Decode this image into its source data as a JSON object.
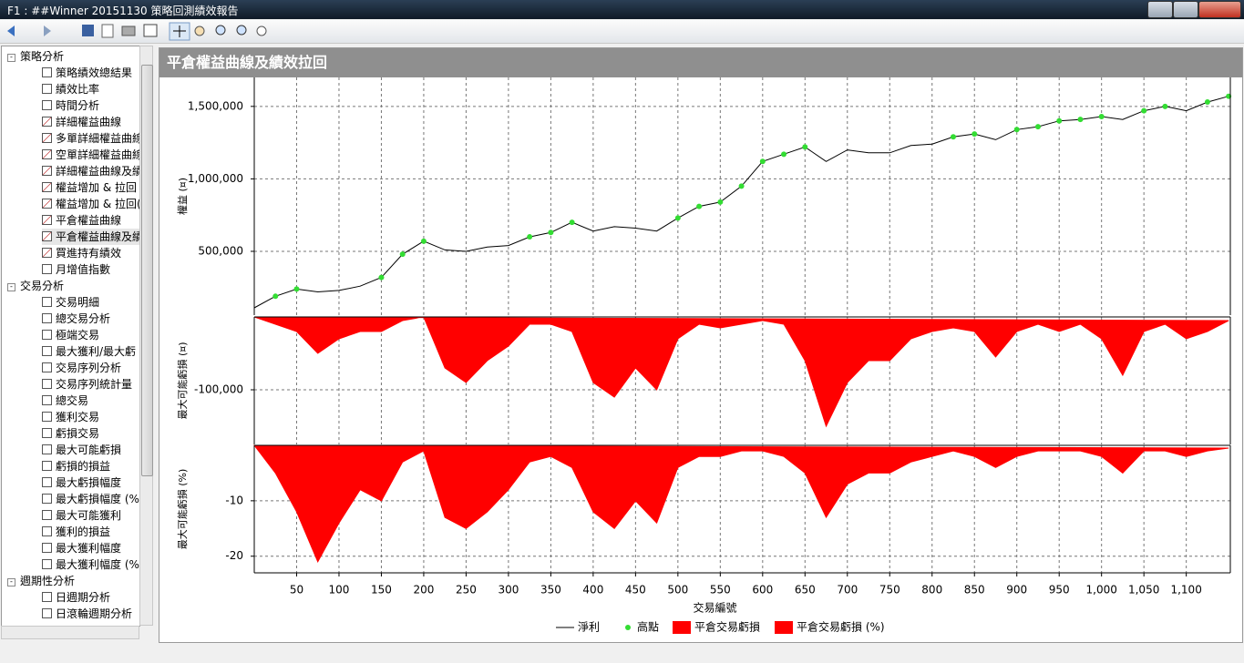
{
  "window": {
    "title": "F1 : ##Winner 20151130 策略回測績效報告"
  },
  "panel": {
    "title": "平倉權益曲線及績效拉回"
  },
  "sidebar": {
    "groups": [
      {
        "label": "策略分析",
        "items": [
          "策略績效總結果",
          "績效比率",
          "時間分析",
          "詳細權益曲線",
          "多單詳細權益曲線",
          "空單詳細權益曲線",
          "詳細權益曲線及績",
          "權益增加 & 拉回",
          "權益增加 & 拉回(",
          "平倉權益曲線",
          "平倉權益曲線及績",
          "買進持有績效",
          "月增值指數"
        ]
      },
      {
        "label": "交易分析",
        "items": [
          "交易明細",
          "總交易分析",
          "極端交易",
          "最大獲利/最大虧",
          "交易序列分析",
          "交易序列統計量",
          "總交易",
          "獲利交易",
          "虧損交易",
          "最大可能虧損",
          "虧損的損益",
          "最大虧損幅度",
          "最大虧損幅度 (%",
          "最大可能獲利",
          "獲利的損益",
          "最大獲利幅度",
          "最大獲利幅度 (%"
        ]
      },
      {
        "label": "週期性分析",
        "items": [
          "日週期分析",
          "日滾輪週期分析"
        ]
      }
    ]
  },
  "chart_data": [
    {
      "type": "line",
      "ylabel": "權益 (¤)",
      "xlim": [
        0,
        1152
      ],
      "ylim": [
        60000,
        1700000
      ],
      "yticks": [
        {
          "value": 500000,
          "label": "500,000"
        },
        {
          "value": 1000000,
          "label": "1,000,000"
        },
        {
          "value": 1500000,
          "label": "1,500,000"
        }
      ],
      "grid": true,
      "series": [
        {
          "name": "淨利",
          "type": "line",
          "color": "#000000",
          "x": [
            0,
            25,
            50,
            75,
            100,
            125,
            150,
            175,
            200,
            225,
            250,
            275,
            300,
            325,
            350,
            375,
            400,
            425,
            450,
            475,
            500,
            525,
            550,
            575,
            600,
            625,
            650,
            675,
            700,
            725,
            750,
            775,
            800,
            825,
            850,
            875,
            900,
            925,
            950,
            975,
            1000,
            1025,
            1050,
            1075,
            1100,
            1125,
            1150
          ],
          "values": [
            110000,
            190000,
            240000,
            220000,
            230000,
            260000,
            320000,
            480000,
            570000,
            510000,
            500000,
            530000,
            540000,
            600000,
            630000,
            700000,
            640000,
            670000,
            660000,
            640000,
            730000,
            810000,
            840000,
            950000,
            1120000,
            1170000,
            1220000,
            1120000,
            1200000,
            1180000,
            1180000,
            1230000,
            1240000,
            1290000,
            1310000,
            1270000,
            1340000,
            1360000,
            1400000,
            1410000,
            1430000,
            1410000,
            1470000,
            1500000,
            1470000,
            1530000,
            1570000
          ]
        },
        {
          "name": "高點",
          "type": "scatter",
          "color": "#33dd33",
          "x": [
            25,
            50,
            150,
            175,
            200,
            325,
            350,
            375,
            500,
            525,
            550,
            575,
            600,
            625,
            650,
            825,
            850,
            900,
            925,
            950,
            975,
            1000,
            1050,
            1075,
            1125,
            1150
          ],
          "values": [
            190000,
            240000,
            320000,
            480000,
            570000,
            600000,
            630000,
            700000,
            730000,
            810000,
            840000,
            950000,
            1120000,
            1170000,
            1220000,
            1290000,
            1310000,
            1340000,
            1360000,
            1400000,
            1410000,
            1430000,
            1470000,
            1500000,
            1530000,
            1570000
          ]
        }
      ]
    },
    {
      "type": "area",
      "ylabel": "最大可能虧損 (¤)",
      "xlim": [
        0,
        1152
      ],
      "ylim": [
        -175000,
        0
      ],
      "yticks": [
        {
          "value": -100000,
          "label": "-100,000"
        }
      ],
      "grid": true,
      "series": [
        {
          "name": "平倉交易虧損",
          "color": "#ff0000",
          "x": [
            0,
            25,
            50,
            75,
            100,
            125,
            150,
            175,
            200,
            225,
            250,
            275,
            300,
            325,
            350,
            375,
            400,
            425,
            450,
            475,
            500,
            525,
            550,
            575,
            600,
            625,
            650,
            675,
            700,
            725,
            750,
            775,
            800,
            825,
            850,
            875,
            900,
            925,
            950,
            975,
            1000,
            1025,
            1050,
            1075,
            1100,
            1125,
            1150
          ],
          "values": [
            0,
            -10000,
            -20000,
            -50000,
            -30000,
            -20000,
            -20000,
            -5000,
            0,
            -70000,
            -90000,
            -60000,
            -40000,
            -10000,
            -10000,
            -20000,
            -90000,
            -110000,
            -70000,
            -100000,
            -30000,
            -10000,
            -15000,
            -10000,
            -5000,
            -10000,
            -60000,
            -150000,
            -90000,
            -60000,
            -60000,
            -30000,
            -20000,
            -15000,
            -20000,
            -55000,
            -20000,
            -10000,
            -20000,
            -10000,
            -30000,
            -80000,
            -20000,
            -10000,
            -30000,
            -20000,
            -5000
          ]
        }
      ]
    },
    {
      "type": "area",
      "ylabel": "最大可能虧損 (%)",
      "xlabel": "交易編號",
      "xlim": [
        0,
        1152
      ],
      "ylim": [
        -23,
        0
      ],
      "yticks": [
        -20,
        -10
      ],
      "grid": true,
      "xticks": [
        50,
        100,
        150,
        200,
        250,
        300,
        350,
        400,
        450,
        500,
        550,
        600,
        650,
        700,
        750,
        800,
        850,
        900,
        950,
        {
          "value": 1000,
          "label": "1,000"
        },
        {
          "value": 1050,
          "label": "1,050"
        },
        {
          "value": 1100,
          "label": "1,100"
        }
      ],
      "series": [
        {
          "name": "平倉交易虧損 (%)",
          "color": "#ff0000",
          "x": [
            0,
            25,
            50,
            75,
            100,
            125,
            150,
            175,
            200,
            225,
            250,
            275,
            300,
            325,
            350,
            375,
            400,
            425,
            450,
            475,
            500,
            525,
            550,
            575,
            600,
            625,
            650,
            675,
            700,
            725,
            750,
            775,
            800,
            825,
            850,
            875,
            900,
            925,
            950,
            975,
            1000,
            1025,
            1050,
            1075,
            1100,
            1125,
            1150
          ],
          "values": [
            0,
            -5,
            -12,
            -21,
            -14,
            -8,
            -10,
            -3,
            -1,
            -13,
            -15,
            -12,
            -8,
            -3,
            -2,
            -4,
            -12,
            -15,
            -10,
            -14,
            -4,
            -2,
            -2,
            -1,
            -1,
            -2,
            -5,
            -13,
            -7,
            -5,
            -5,
            -3,
            -2,
            -1,
            -2,
            -4,
            -2,
            -1,
            -1,
            -1,
            -2,
            -5,
            -1,
            -1,
            -2,
            -1,
            -0.5
          ]
        }
      ]
    }
  ]
}
